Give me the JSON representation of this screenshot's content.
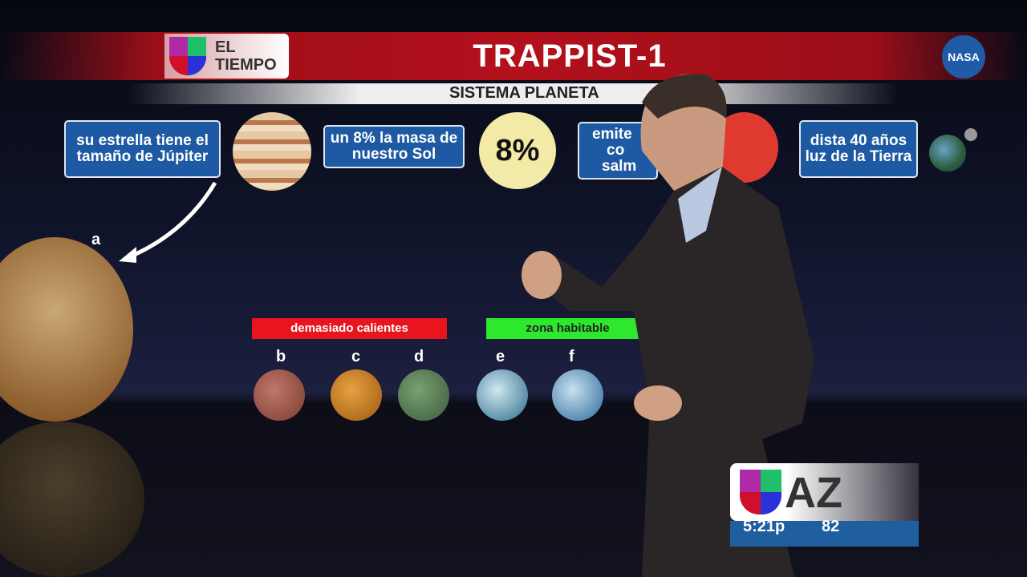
{
  "header": {
    "brand_line1": "EL",
    "brand_line2": "TIEMPO",
    "title": "TRAPPIST-1",
    "subtitle": "SISTEMA PLANETA",
    "nasa_logo": "NASA"
  },
  "facts": [
    {
      "text": "su estrella tiene el tamaño de Júpiter"
    },
    {
      "text": "un 8% la masa de nuestro Sol",
      "badge": "8%"
    },
    {
      "text_lines": [
        "emite",
        "co",
        "salm"
      ]
    },
    {
      "text": "dista 40 años luz de la Tierra"
    }
  ],
  "planets": {
    "a": "a",
    "b": "b",
    "c": "c",
    "d": "d",
    "e": "e",
    "f": "f"
  },
  "zones": {
    "hot": "demasiado calientes",
    "habitable": "zona habitable",
    "hot_color": "#e8141e",
    "habitable_color": "#2ee82e"
  },
  "station": {
    "name": "AZ",
    "time": "5:21p",
    "temp": "82"
  }
}
